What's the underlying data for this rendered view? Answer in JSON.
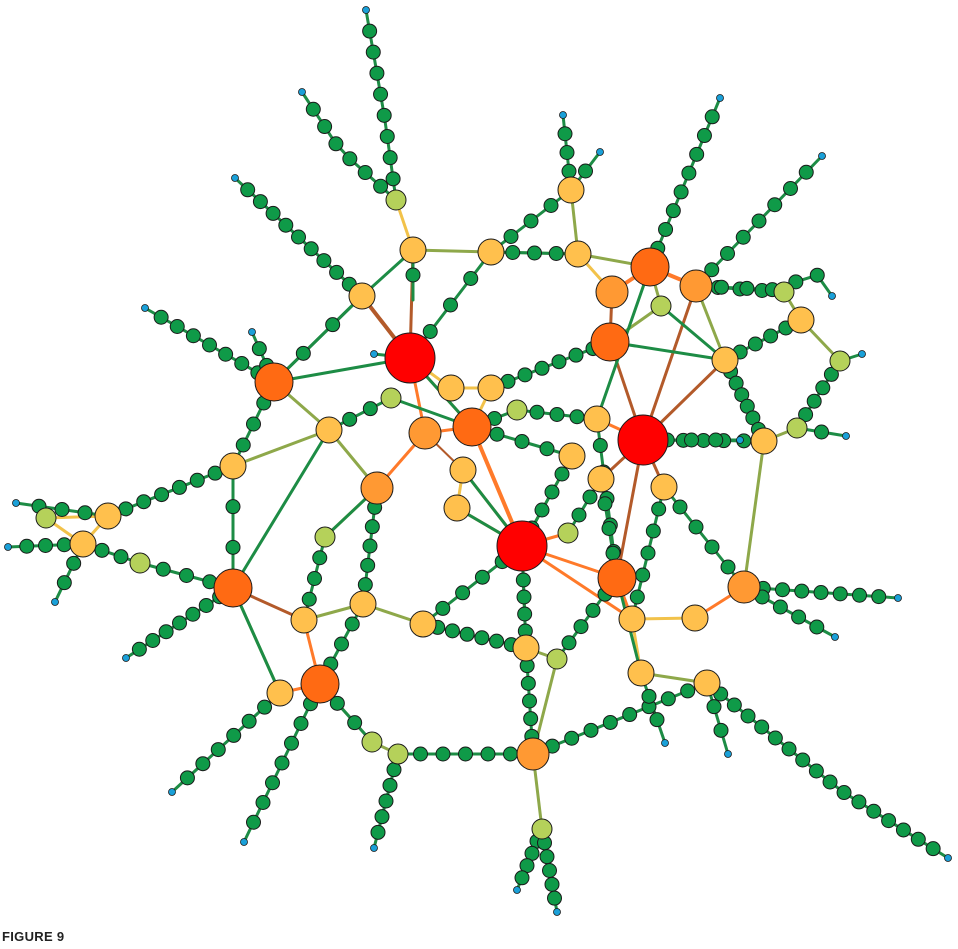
{
  "figure": {
    "caption": "FIGURE 9"
  },
  "colors": {
    "node_red": "#ff0000",
    "node_dark_orange": "#ff6a13",
    "node_orange": "#ff9933",
    "node_light_orange": "#ffc04d",
    "node_yellow_green": "#b5d15a",
    "node_green": "#0f9a48",
    "node_blue": "#1aa0d8",
    "edge_green": "#1d8c45",
    "edge_olive": "#8ea84a",
    "edge_brown": "#b35a2a",
    "edge_orange": "#ff7a2a",
    "edge_yellow": "#f2c24a",
    "stroke": "#1a1a1a"
  }
}
